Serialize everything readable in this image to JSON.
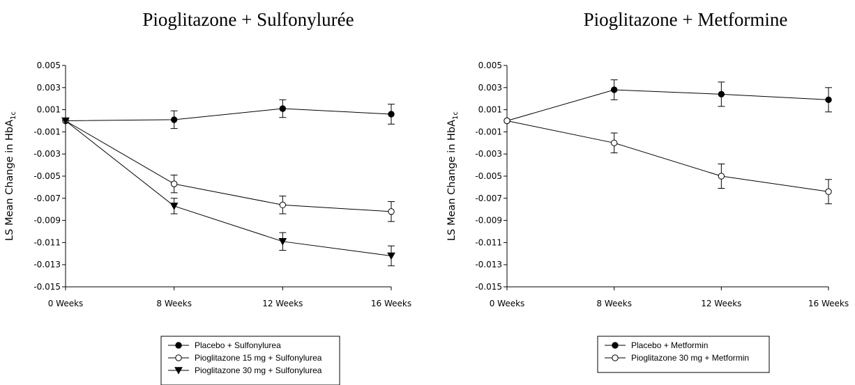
{
  "chart_data": [
    {
      "type": "line",
      "title": "Pioglitazone + Sulfonylurée",
      "ylabel": "LS Mean Change in HbA",
      "ylabel_sub": "1c",
      "categories": [
        "0 Weeks",
        "8 Weeks",
        "12 Weeks",
        "16 Weeks"
      ],
      "ylim": [
        -0.015,
        0.005
      ],
      "yticks": [
        "0.005",
        "0.003",
        "0.001",
        "-0.001",
        "-0.003",
        "-0.005",
        "-0.007",
        "-0.009",
        "-0.011",
        "-0.013",
        "-0.015"
      ],
      "grid": false,
      "legend_position": "bottom",
      "series": [
        {
          "name": "Placebo + Sulfonylurea",
          "marker": "filled-circle",
          "values": [
            0.0,
            0.0001,
            0.0011,
            0.0006
          ],
          "err": [
            0,
            0.0008,
            0.0008,
            0.0009
          ]
        },
        {
          "name": "Pioglitazone 15 mg + Sulfonylurea",
          "marker": "open-circle",
          "values": [
            0.0,
            -0.0057,
            -0.0076,
            -0.0082
          ],
          "err": [
            0,
            0.0008,
            0.0008,
            0.0009
          ]
        },
        {
          "name": "Pioglitazone 30 mg + Sulfonylurea",
          "marker": "filled-triangle-down",
          "values": [
            0.0,
            -0.0077,
            -0.0109,
            -0.0122
          ],
          "err": [
            0,
            0.0007,
            0.0008,
            0.0009
          ]
        }
      ]
    },
    {
      "type": "line",
      "title": "Pioglitazone + Metformine",
      "ylabel": "LS Mean Change in HbA",
      "ylabel_sub": "1c",
      "categories": [
        "0 Weeks",
        "8 Weeks",
        "12 Weeks",
        "16 Weeks"
      ],
      "ylim": [
        -0.015,
        0.005
      ],
      "yticks": [
        "0.005",
        "0.003",
        "0.001",
        "-0.001",
        "-0.003",
        "-0.005",
        "-0.007",
        "-0.009",
        "-0.011",
        "-0.013",
        "-0.015"
      ],
      "grid": false,
      "legend_position": "bottom",
      "series": [
        {
          "name": "Placebo + Metformin",
          "marker": "filled-circle",
          "values": [
            0.0,
            0.0028,
            0.0024,
            0.0019
          ],
          "err": [
            0,
            0.0009,
            0.0011,
            0.0011
          ]
        },
        {
          "name": "Pioglitazone 30 mg + Metformin",
          "marker": "open-circle",
          "values": [
            0.0,
            -0.002,
            -0.005,
            -0.0064
          ],
          "err": [
            0,
            0.0009,
            0.0011,
            0.0011
          ]
        }
      ]
    }
  ]
}
